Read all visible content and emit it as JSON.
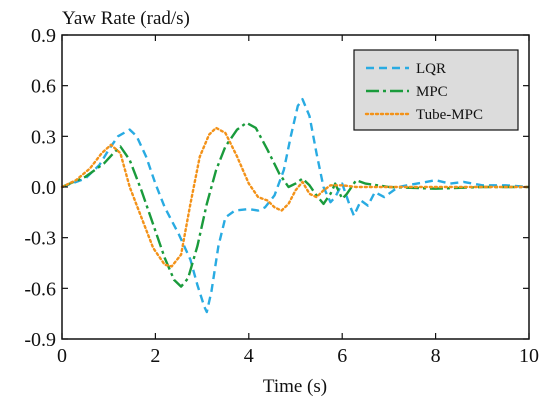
{
  "chart_data": {
    "type": "line",
    "title": "",
    "xlabel": "Time (s)",
    "ylabel": "Yaw Rate (rad/s)",
    "xlim": [
      0,
      10
    ],
    "ylim": [
      -0.9,
      0.9
    ],
    "x_ticks": [
      0,
      2,
      4,
      6,
      8,
      10
    ],
    "y_ticks": [
      0.9,
      0.6,
      0.3,
      0.0,
      -0.3,
      -0.6,
      -0.9
    ],
    "x_tick_labels": [
      "0",
      "2",
      "4",
      "6",
      "8",
      "10"
    ],
    "y_tick_labels": [
      "0.9",
      "0.6",
      "0.3",
      "0.0",
      "-0.3",
      "-0.6",
      "-0.9"
    ],
    "grid": false,
    "legend_position": "top-right",
    "legend_background": "#dcdcdc",
    "series": [
      {
        "name": "LQR",
        "color": "#29abe2",
        "line_style": "dashed",
        "points": [
          [
            0,
            0
          ],
          [
            0.5,
            0.05
          ],
          [
            0.8,
            0.13
          ],
          [
            1.0,
            0.22
          ],
          [
            1.2,
            0.3
          ],
          [
            1.45,
            0.34
          ],
          [
            1.6,
            0.3
          ],
          [
            1.8,
            0.18
          ],
          [
            2.0,
            0.02
          ],
          [
            2.2,
            -0.12
          ],
          [
            2.5,
            -0.28
          ],
          [
            2.75,
            -0.43
          ],
          [
            2.9,
            -0.58
          ],
          [
            3.05,
            -0.71
          ],
          [
            3.1,
            -0.74
          ],
          [
            3.2,
            -0.62
          ],
          [
            3.35,
            -0.35
          ],
          [
            3.5,
            -0.18
          ],
          [
            3.7,
            -0.14
          ],
          [
            4.0,
            -0.13
          ],
          [
            4.2,
            -0.14
          ],
          [
            4.35,
            -0.12
          ],
          [
            4.55,
            -0.05
          ],
          [
            4.75,
            0.1
          ],
          [
            4.9,
            0.3
          ],
          [
            5.05,
            0.48
          ],
          [
            5.15,
            0.52
          ],
          [
            5.3,
            0.42
          ],
          [
            5.45,
            0.2
          ],
          [
            5.6,
            0.0
          ],
          [
            5.75,
            -0.09
          ],
          [
            5.85,
            -0.06
          ],
          [
            6.0,
            0.02
          ],
          [
            6.15,
            -0.1
          ],
          [
            6.25,
            -0.17
          ],
          [
            6.4,
            -0.08
          ],
          [
            6.55,
            -0.11
          ],
          [
            6.7,
            -0.03
          ],
          [
            6.9,
            -0.06
          ],
          [
            7.2,
            0.0
          ],
          [
            7.6,
            0.02
          ],
          [
            8.0,
            0.04
          ],
          [
            8.3,
            0.02
          ],
          [
            8.6,
            0.03
          ],
          [
            9.0,
            0.01
          ],
          [
            9.5,
            0.01
          ],
          [
            10.0,
            0.0
          ]
        ]
      },
      {
        "name": "MPC",
        "color": "#1a9b3c",
        "line_style": "dash-dot",
        "points": [
          [
            0,
            0
          ],
          [
            0.5,
            0.06
          ],
          [
            0.9,
            0.14
          ],
          [
            1.1,
            0.2
          ],
          [
            1.25,
            0.24
          ],
          [
            1.45,
            0.16
          ],
          [
            1.7,
            -0.02
          ],
          [
            1.95,
            -0.22
          ],
          [
            2.2,
            -0.42
          ],
          [
            2.4,
            -0.55
          ],
          [
            2.55,
            -0.59
          ],
          [
            2.7,
            -0.54
          ],
          [
            2.9,
            -0.35
          ],
          [
            3.1,
            -0.1
          ],
          [
            3.3,
            0.1
          ],
          [
            3.5,
            0.24
          ],
          [
            3.75,
            0.34
          ],
          [
            3.95,
            0.38
          ],
          [
            4.15,
            0.35
          ],
          [
            4.4,
            0.22
          ],
          [
            4.65,
            0.08
          ],
          [
            4.85,
            0.0
          ],
          [
            5.0,
            0.02
          ],
          [
            5.15,
            0.05
          ],
          [
            5.3,
            0.01
          ],
          [
            5.45,
            -0.05
          ],
          [
            5.6,
            -0.1
          ],
          [
            5.75,
            -0.04
          ],
          [
            5.85,
            0.02
          ],
          [
            6.0,
            -0.07
          ],
          [
            6.1,
            -0.04
          ],
          [
            6.3,
            0.04
          ],
          [
            6.5,
            0.02
          ],
          [
            7.0,
            0.0
          ],
          [
            8.0,
            -0.01
          ],
          [
            9.0,
            0.0
          ],
          [
            10.0,
            0.0
          ]
        ]
      },
      {
        "name": "Tube-MPC",
        "color": "#f39219",
        "line_style": "dotted",
        "points": [
          [
            0,
            0
          ],
          [
            0.3,
            0.04
          ],
          [
            0.6,
            0.11
          ],
          [
            0.85,
            0.2
          ],
          [
            1.05,
            0.25
          ],
          [
            1.25,
            0.2
          ],
          [
            1.45,
            0.0
          ],
          [
            1.7,
            -0.18
          ],
          [
            1.95,
            -0.36
          ],
          [
            2.2,
            -0.46
          ],
          [
            2.35,
            -0.47
          ],
          [
            2.55,
            -0.4
          ],
          [
            2.75,
            -0.1
          ],
          [
            2.95,
            0.18
          ],
          [
            3.15,
            0.31
          ],
          [
            3.3,
            0.35
          ],
          [
            3.5,
            0.32
          ],
          [
            3.75,
            0.18
          ],
          [
            4.0,
            0.02
          ],
          [
            4.2,
            -0.06
          ],
          [
            4.4,
            -0.08
          ],
          [
            4.55,
            -0.12
          ],
          [
            4.7,
            -0.14
          ],
          [
            4.85,
            -0.1
          ],
          [
            5.0,
            -0.02
          ],
          [
            5.15,
            0.03
          ],
          [
            5.3,
            -0.04
          ],
          [
            5.45,
            -0.06
          ],
          [
            5.6,
            -0.02
          ],
          [
            5.75,
            0.01
          ],
          [
            6.0,
            0.01
          ],
          [
            6.3,
            0.0
          ],
          [
            7.0,
            0.0
          ],
          [
            8.0,
            0.0
          ],
          [
            9.0,
            0.0
          ],
          [
            10.0,
            0.0
          ]
        ]
      }
    ]
  }
}
